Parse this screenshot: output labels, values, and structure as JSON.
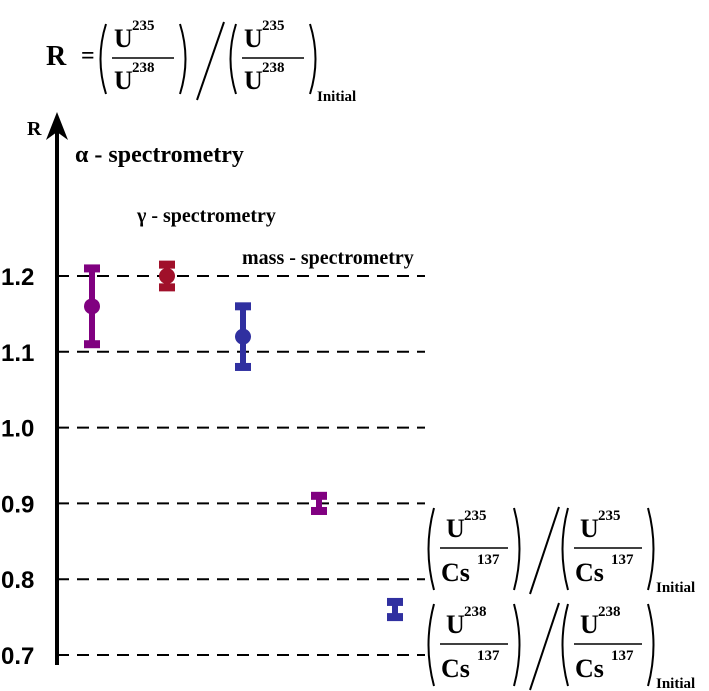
{
  "formula_top": {
    "lhs": "R",
    "eq": "=",
    "num_base": "U",
    "num_sup": "235",
    "den_base": "U",
    "den_sup": "238",
    "subscript": "Initial"
  },
  "formula_u235_cs137": {
    "num_base": "U",
    "num_sup": "235",
    "den_base": "Cs",
    "den_sup": "137",
    "subscript": "Initial"
  },
  "formula_u238_cs137": {
    "num_base": "U",
    "num_sup": "238",
    "den_base": "Cs",
    "den_sup": "137",
    "subscript": "Initial"
  },
  "chart_data": {
    "type": "scatter",
    "ylabel": "R",
    "ylim": [
      0.685,
      1.235
    ],
    "yticks": [
      0.7,
      0.8,
      0.9,
      1.0,
      1.1,
      1.2
    ],
    "ytick_labels": [
      "0.7",
      "0.8",
      "0.9",
      "1.0",
      "1.1",
      "1.2"
    ],
    "grid": "dashed horizontal at each tick",
    "annotations": [
      {
        "text": "α - spectrometry"
      },
      {
        "text": "γ - spectrometry"
      },
      {
        "text": "mass - spectrometry"
      }
    ],
    "points": [
      {
        "group": "α - spectrometry",
        "y": 1.16,
        "ylow": 1.11,
        "yhigh": 1.21,
        "color": "#800080",
        "marker": true
      },
      {
        "group": "γ - spectrometry",
        "y": 1.2,
        "ylow": 1.185,
        "yhigh": 1.215,
        "color": "#a0102a",
        "marker": true
      },
      {
        "group": "mass - spectrometry",
        "y": 1.12,
        "ylow": 1.08,
        "yhigh": 1.16,
        "color": "#3030a0",
        "marker": true
      },
      {
        "group": "U235/Cs137",
        "y": 0.9,
        "ylow": 0.89,
        "yhigh": 0.91,
        "color": "#800080",
        "marker": false
      },
      {
        "group": "U238/Cs137",
        "y": 0.76,
        "ylow": 0.75,
        "yhigh": 0.77,
        "color": "#3030a0",
        "marker": false
      }
    ]
  }
}
